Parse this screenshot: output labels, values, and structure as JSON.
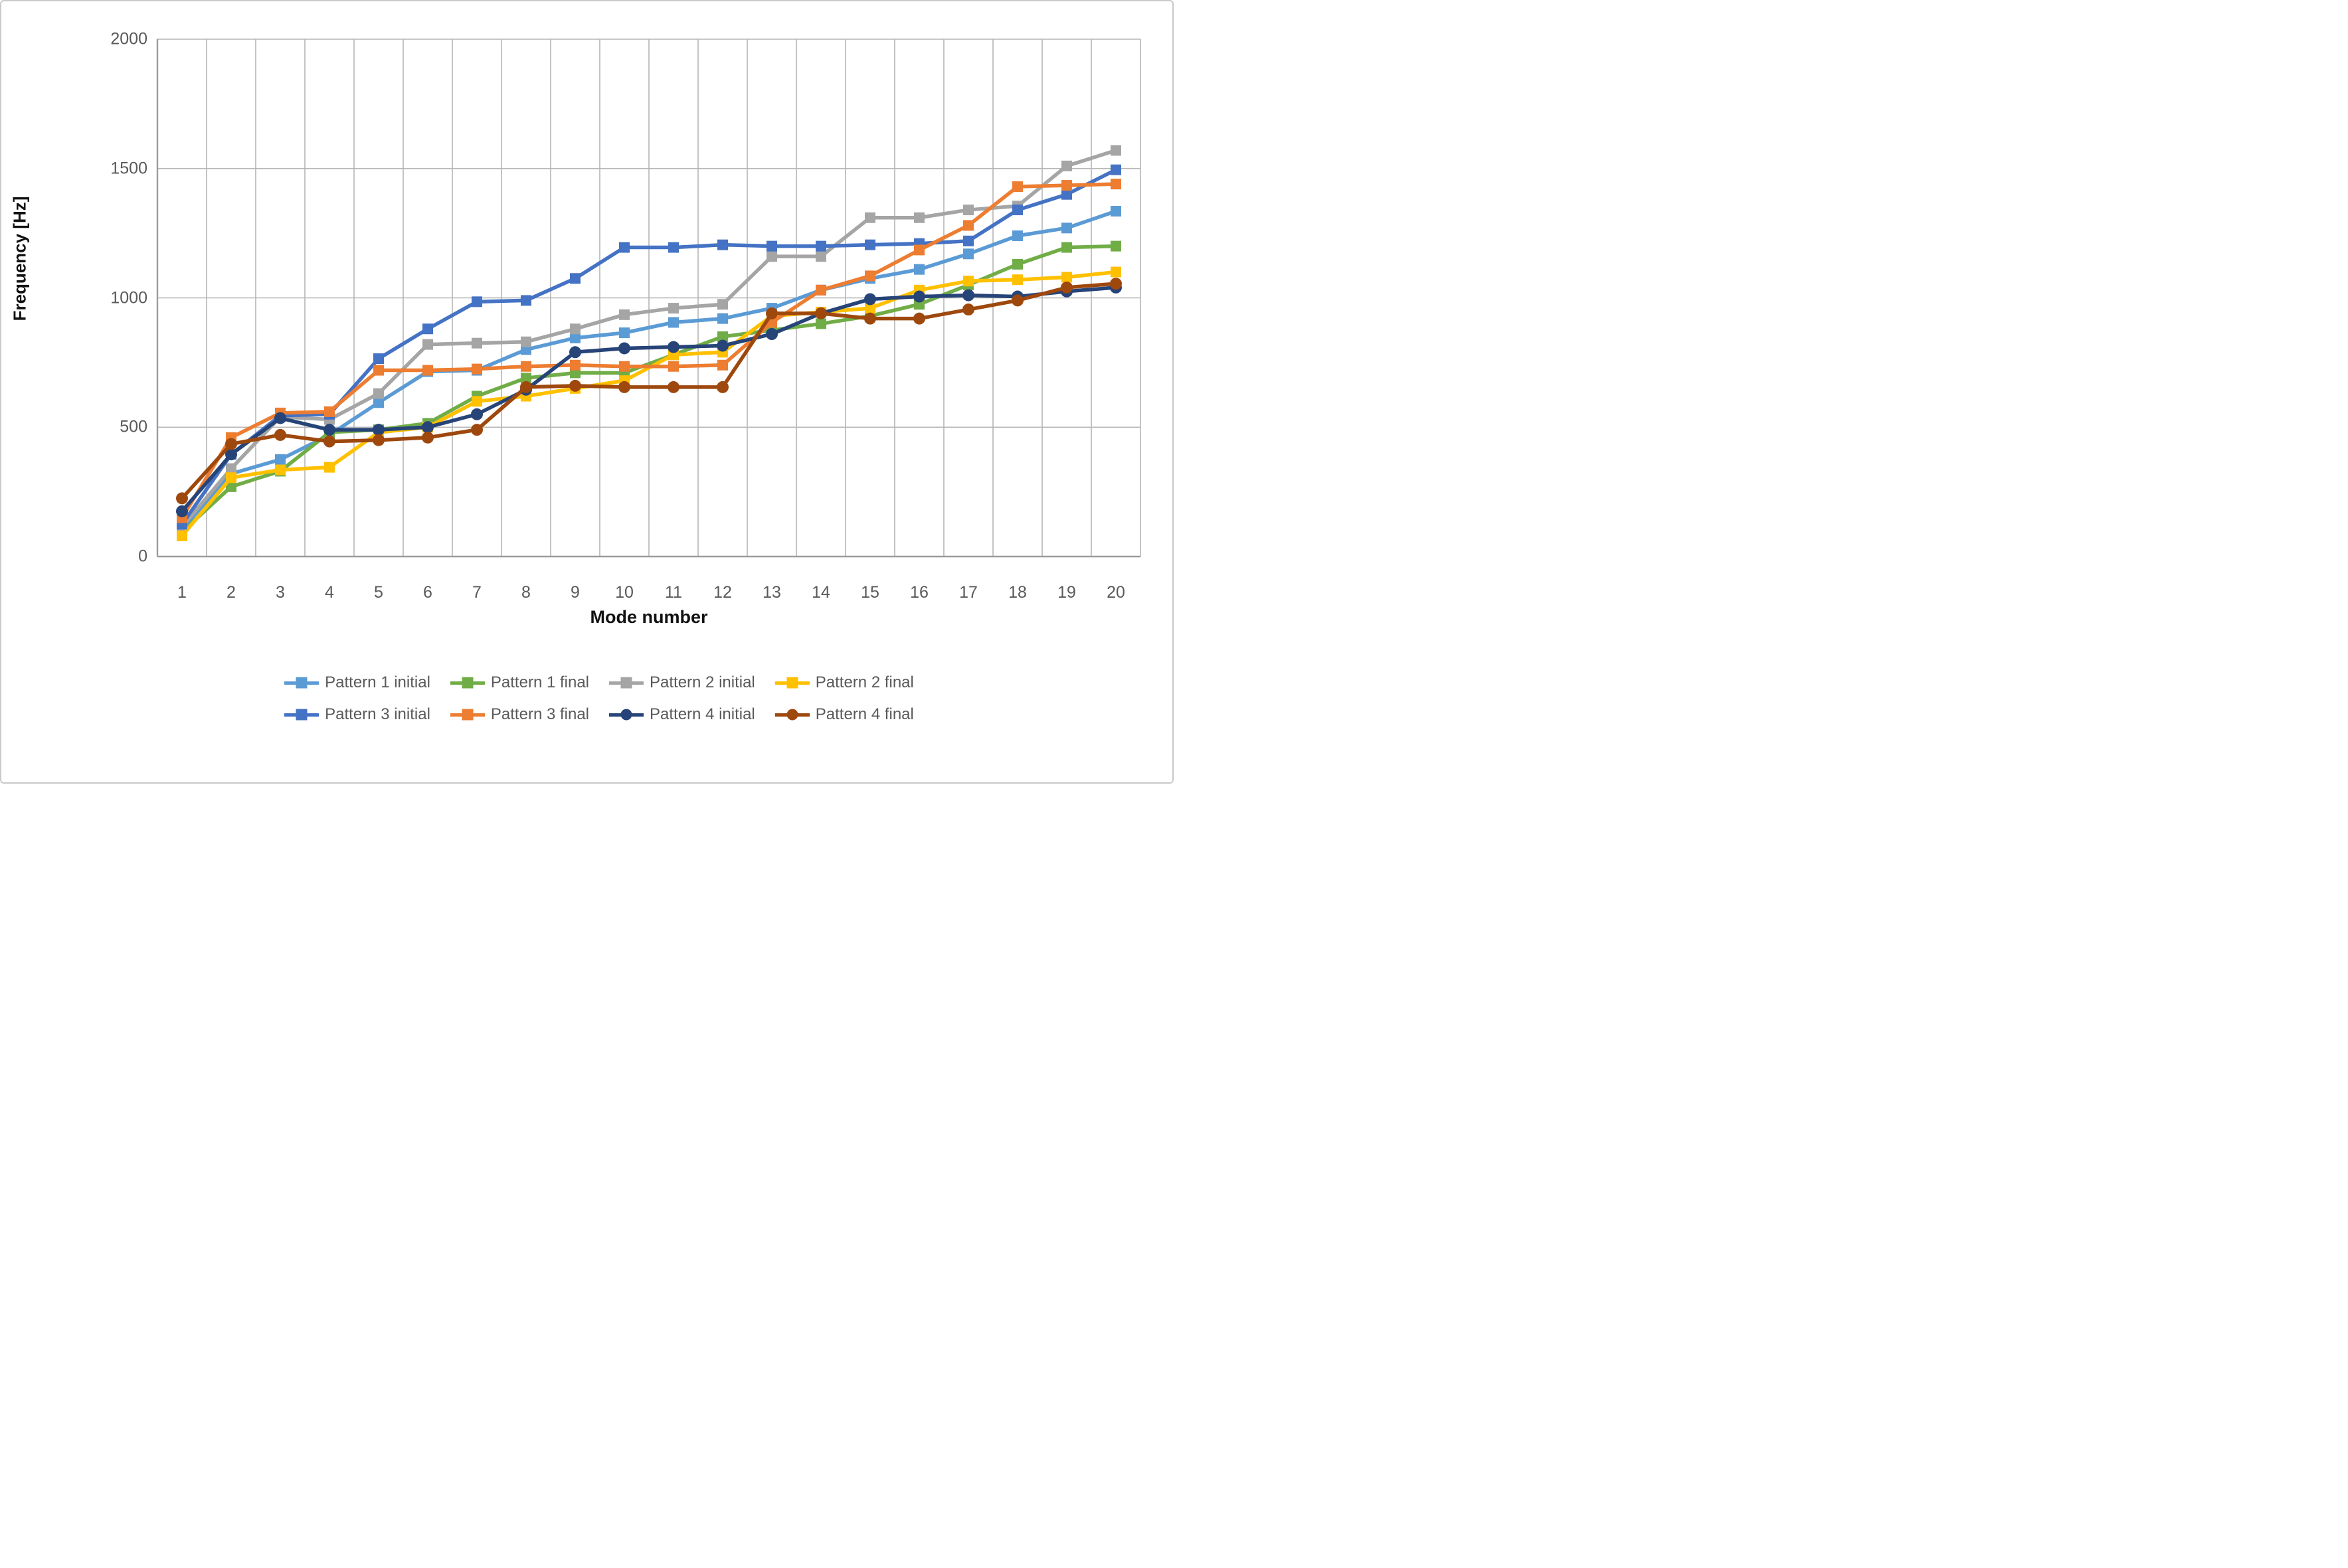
{
  "figure": {
    "y_axis_title": "Frequency [Hz]",
    "x_axis_title": "Mode number"
  },
  "chart_data": {
    "type": "line",
    "title": "",
    "xlabel": "Mode number",
    "ylabel": "Frequency [Hz]",
    "categories": [
      1,
      2,
      3,
      4,
      5,
      6,
      7,
      8,
      9,
      10,
      11,
      12,
      13,
      14,
      15,
      16,
      17,
      18,
      19,
      20
    ],
    "ylim": [
      0,
      2000
    ],
    "yticks": [
      0,
      500,
      1000,
      1500,
      2000
    ],
    "grid": "vertical category lines and horizontal lines at each y tick",
    "legend_position": "bottom, two rows",
    "axis_color": "#9b9b9b",
    "grid_color": "#b5b5b5",
    "tick_text_color": "#595959",
    "series": [
      {
        "name": "Pattern 1 initial",
        "color": "#5B9BD5",
        "marker": "square",
        "values": [
          105,
          320,
          375,
          470,
          595,
          715,
          720,
          800,
          845,
          865,
          905,
          920,
          960,
          1030,
          1075,
          1110,
          1170,
          1240,
          1270,
          1335
        ]
      },
      {
        "name": "Pattern 1 final",
        "color": "#70AD47",
        "marker": "square",
        "values": [
          95,
          270,
          330,
          480,
          490,
          515,
          620,
          690,
          710,
          710,
          780,
          850,
          875,
          900,
          930,
          975,
          1050,
          1130,
          1195,
          1200
        ]
      },
      {
        "name": "Pattern 2 initial",
        "color": "#A5A5A5",
        "marker": "square",
        "values": [
          115,
          340,
          540,
          530,
          630,
          820,
          825,
          830,
          880,
          935,
          960,
          975,
          1160,
          1160,
          1310,
          1310,
          1340,
          1355,
          1510,
          1570
        ]
      },
      {
        "name": "Pattern 2 final",
        "color": "#FFC000",
        "marker": "square",
        "values": [
          80,
          305,
          335,
          345,
          480,
          500,
          600,
          620,
          650,
          680,
          780,
          790,
          930,
          945,
          960,
          1030,
          1065,
          1070,
          1080,
          1100
        ]
      },
      {
        "name": "Pattern 3 initial",
        "color": "#4472C4",
        "marker": "square",
        "values": [
          125,
          395,
          545,
          550,
          765,
          880,
          985,
          990,
          1075,
          1195,
          1195,
          1205,
          1200,
          1200,
          1205,
          1210,
          1220,
          1340,
          1400,
          1495
        ]
      },
      {
        "name": "Pattern 3 final",
        "color": "#ED7D31",
        "marker": "square",
        "values": [
          150,
          460,
          555,
          560,
          720,
          720,
          725,
          735,
          740,
          735,
          735,
          740,
          905,
          1030,
          1085,
          1185,
          1280,
          1430,
          1435,
          1440
        ]
      },
      {
        "name": "Pattern 4 initial",
        "color": "#264478",
        "marker": "circle",
        "values": [
          175,
          395,
          535,
          490,
          490,
          500,
          550,
          645,
          790,
          805,
          810,
          815,
          860,
          940,
          995,
          1005,
          1010,
          1005,
          1025,
          1040
        ]
      },
      {
        "name": "Pattern 4 final",
        "color": "#9E480E",
        "marker": "circle",
        "values": [
          225,
          435,
          470,
          445,
          450,
          460,
          490,
          655,
          660,
          655,
          655,
          655,
          940,
          940,
          920,
          920,
          955,
          990,
          1040,
          1055
        ]
      }
    ]
  }
}
